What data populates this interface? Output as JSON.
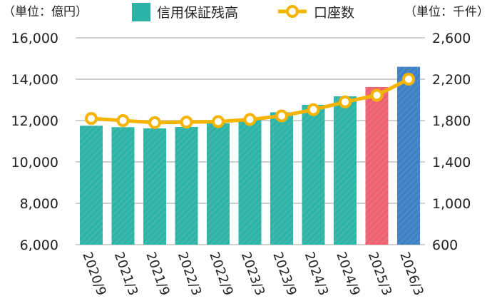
{
  "chart_data": {
    "type": "bar+line",
    "categories": [
      "2020/9",
      "2021/3",
      "2021/9",
      "2022/3",
      "2022/9",
      "2023/3",
      "2023/9",
      "2024/3",
      "2024/9",
      "2025/3",
      "2026/3"
    ],
    "series": [
      {
        "name": "信用保証残高",
        "type": "bar",
        "axis": "left",
        "values": [
          11750,
          11680,
          11620,
          11690,
          11870,
          12100,
          12400,
          12760,
          13170,
          13620,
          14600
        ],
        "colors": [
          "#2ab3a6",
          "#2ab3a6",
          "#2ab3a6",
          "#2ab3a6",
          "#2ab3a6",
          "#2ab3a6",
          "#2ab3a6",
          "#2ab3a6",
          "#2ab3a6",
          "#ee6070",
          "#3b7fc4"
        ]
      },
      {
        "name": "口座数",
        "type": "line",
        "axis": "right",
        "color": "#f5b400",
        "values": [
          1820,
          1800,
          1780,
          1785,
          1790,
          1810,
          1845,
          1905,
          1980,
          2045,
          2200
        ]
      }
    ],
    "left_axis": {
      "unit_label": "（単位：億円）",
      "ylim": [
        6000,
        16000
      ],
      "ticks": [
        "6,000",
        "8,000",
        "10,000",
        "12,000",
        "14,000",
        "16,000"
      ]
    },
    "right_axis": {
      "unit_label": "（単位：千件）",
      "ylim": [
        600,
        2600
      ],
      "ticks": [
        "600",
        "1,000",
        "1,400",
        "1,800",
        "2,200",
        "2,600"
      ]
    },
    "grid": true,
    "legend": "top"
  }
}
